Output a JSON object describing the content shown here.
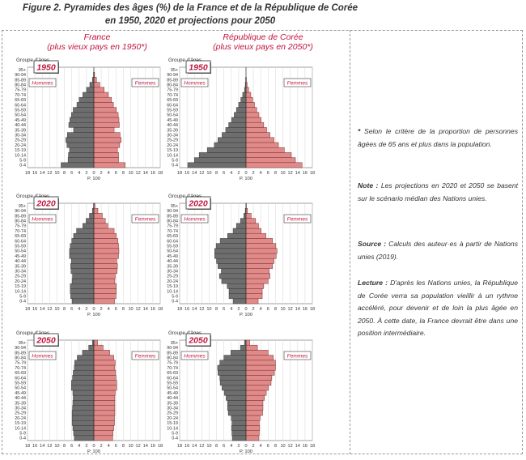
{
  "figure": {
    "title_line1": "Figure 2. Pyramides des âges (%) de la France et de la République de Corée",
    "title_line2": "en 1950, 2020 et projections pour 2050"
  },
  "columns": [
    {
      "name": "France",
      "subtitle": "(plus vieux pays en 1950*)"
    },
    {
      "name": "République de Corée",
      "subtitle": "(plus vieux pays en 2050*)"
    }
  ],
  "panel_labels": {
    "age_group_header": "Groupe d'âges",
    "men": "Hommes",
    "women": "Femmes",
    "x_unit": "P. 100"
  },
  "x_ticks": [
    "18",
    "16",
    "14",
    "12",
    "10",
    "8",
    "6",
    "4",
    "2",
    "0",
    "2",
    "4",
    "6",
    "8",
    "10",
    "12",
    "14",
    "16",
    "18"
  ],
  "colors": {
    "men": "#6e6e6e",
    "women": "#e08a8a",
    "accent": "#c0143c"
  },
  "chart_data": [
    {
      "type": "bar",
      "country": "France",
      "year": "1950",
      "categories": [
        "0-4",
        "5-9",
        "10-14",
        "15-19",
        "20-24",
        "25-29",
        "30-34",
        "35-39",
        "40-44",
        "45-49",
        "50-54",
        "55-59",
        "60-64",
        "65-69",
        "70-74",
        "75-79",
        "80-84",
        "85-89",
        "90-94",
        "95+"
      ],
      "series": [
        {
          "name": "Hommes",
          "values": [
            8.9,
            7.0,
            6.9,
            6.6,
            7.3,
            7.6,
            7.2,
            5.5,
            6.8,
            6.5,
            6.1,
            5.6,
            4.6,
            4.0,
            3.0,
            2.0,
            1.1,
            0.4,
            0.1,
            0.0
          ]
        },
        {
          "name": "Femmes",
          "values": [
            8.5,
            6.7,
            6.7,
            6.4,
            7.0,
            7.4,
            7.1,
            5.5,
            6.9,
            6.8,
            6.6,
            6.1,
            5.3,
            4.8,
            3.9,
            2.8,
            1.6,
            0.7,
            0.2,
            0.0
          ]
        }
      ],
      "xlim": [
        -18,
        18
      ]
    },
    {
      "type": "bar",
      "country": "République de Corée",
      "year": "1950",
      "categories": [
        "0-4",
        "5-9",
        "10-14",
        "15-19",
        "20-24",
        "25-29",
        "30-34",
        "35-39",
        "40-44",
        "45-49",
        "50-54",
        "55-59",
        "60-64",
        "65-69",
        "70-74",
        "75-79",
        "80-84",
        "85-89",
        "90-94",
        "95+"
      ],
      "series": [
        {
          "name": "Hommes",
          "values": [
            15.8,
            14.0,
            12.7,
            10.5,
            8.6,
            7.6,
            6.5,
            5.5,
            4.7,
            3.9,
            3.2,
            2.6,
            2.0,
            1.4,
            0.9,
            0.4,
            0.2,
            0.1,
            0.0,
            0.0
          ]
        },
        {
          "name": "Femmes",
          "values": [
            15.2,
            13.4,
            12.3,
            10.4,
            8.8,
            7.6,
            6.5,
            5.6,
            4.8,
            4.1,
            3.5,
            2.9,
            2.3,
            1.8,
            1.3,
            0.7,
            0.3,
            0.1,
            0.0,
            0.0
          ]
        }
      ],
      "xlim": [
        -18,
        18
      ]
    },
    {
      "type": "bar",
      "country": "France",
      "year": "2020",
      "categories": [
        "0-4",
        "5-9",
        "10-14",
        "15-19",
        "20-24",
        "25-29",
        "30-34",
        "35-39",
        "40-44",
        "45-49",
        "50-54",
        "55-59",
        "60-64",
        "65-69",
        "70-74",
        "75-79",
        "80-84",
        "85-89",
        "90-94",
        "95+"
      ],
      "series": [
        {
          "name": "Hommes",
          "values": [
            5.9,
            6.3,
            6.4,
            6.4,
            5.9,
            5.8,
            6.2,
            6.3,
            6.1,
            6.6,
            6.6,
            6.4,
            6.0,
            5.5,
            4.7,
            3.0,
            2.1,
            1.2,
            0.4,
            0.1
          ]
        },
        {
          "name": "Femmes",
          "values": [
            5.6,
            6.0,
            6.1,
            6.1,
            5.7,
            5.8,
            6.3,
            6.4,
            6.2,
            6.7,
            6.8,
            6.7,
            6.5,
            6.1,
            5.5,
            3.8,
            3.1,
            2.3,
            1.1,
            0.3
          ]
        }
      ],
      "xlim": [
        -18,
        18
      ]
    },
    {
      "type": "bar",
      "country": "République de Corée",
      "year": "2020",
      "categories": [
        "0-4",
        "5-9",
        "10-14",
        "15-19",
        "20-24",
        "25-29",
        "30-34",
        "35-39",
        "40-44",
        "45-49",
        "50-54",
        "55-59",
        "60-64",
        "65-69",
        "70-74",
        "75-79",
        "80-84",
        "85-89",
        "90-94",
        "95+"
      ],
      "series": [
        {
          "name": "Hommes",
          "values": [
            3.5,
            4.6,
            4.6,
            5.1,
            6.6,
            7.2,
            6.7,
            7.6,
            8.0,
            8.5,
            8.5,
            8.1,
            7.0,
            5.0,
            3.5,
            2.6,
            1.5,
            0.6,
            0.2,
            0.0
          ]
        },
        {
          "name": "Femmes",
          "values": [
            3.3,
            4.4,
            4.4,
            4.8,
            6.0,
            6.5,
            6.3,
            7.2,
            7.6,
            8.2,
            8.4,
            8.1,
            7.2,
            5.4,
            4.1,
            3.4,
            2.6,
            1.4,
            0.4,
            0.1
          ]
        }
      ],
      "xlim": [
        -18,
        18
      ]
    },
    {
      "type": "bar",
      "country": "France",
      "year": "2050",
      "categories": [
        "0-4",
        "5-9",
        "10-14",
        "15-19",
        "20-24",
        "25-29",
        "30-34",
        "35-39",
        "40-44",
        "45-49",
        "50-54",
        "55-59",
        "60-64",
        "65-69",
        "70-74",
        "75-79",
        "80-84",
        "85-89",
        "90-94",
        "95+"
      ],
      "series": [
        {
          "name": "Hommes",
          "values": [
            5.3,
            5.5,
            5.7,
            5.9,
            5.9,
            5.9,
            5.8,
            5.7,
            5.6,
            5.7,
            6.1,
            6.1,
            5.8,
            5.6,
            5.3,
            5.2,
            4.5,
            3.1,
            1.4,
            0.4
          ]
        },
        {
          "name": "Femmes",
          "values": [
            5.1,
            5.2,
            5.4,
            5.6,
            5.6,
            5.7,
            5.7,
            5.7,
            5.7,
            5.8,
            6.2,
            6.2,
            6.0,
            5.9,
            5.7,
            5.8,
            5.4,
            4.3,
            2.5,
            1.0
          ]
        }
      ],
      "xlim": [
        -18,
        18
      ]
    },
    {
      "type": "bar",
      "country": "République de Corée",
      "year": "2050",
      "categories": [
        "0-4",
        "5-9",
        "10-14",
        "15-19",
        "20-24",
        "25-29",
        "30-34",
        "35-39",
        "40-44",
        "45-49",
        "50-54",
        "55-59",
        "60-64",
        "65-69",
        "70-74",
        "75-79",
        "80-84",
        "85-89",
        "90-94",
        "95+"
      ],
      "series": [
        {
          "name": "Hommes",
          "values": [
            3.7,
            3.8,
            3.9,
            3.8,
            4.0,
            4.8,
            5.0,
            5.0,
            5.4,
            5.9,
            6.5,
            7.0,
            7.1,
            7.6,
            7.7,
            7.1,
            6.0,
            4.1,
            1.5,
            0.4
          ]
        },
        {
          "name": "Femmes",
          "values": [
            3.5,
            3.6,
            3.7,
            3.6,
            3.8,
            4.5,
            4.6,
            4.6,
            5.0,
            5.5,
            6.1,
            6.8,
            7.0,
            7.7,
            8.0,
            8.0,
            7.4,
            6.0,
            3.1,
            1.0
          ]
        }
      ],
      "xlim": [
        -18,
        18
      ]
    }
  ],
  "notes": {
    "star_sym": "*",
    "star_text": "Selon le critère de la proportion de personnes âgées de 65 ans et plus dans la population.",
    "note_label": "Note :",
    "note_text": "Les projections en 2020 et 2050 se basent sur le scénario médian des Nations unies.",
    "source_label": "Source :",
    "source_text": "Calculs des auteur·es à partir de Nations unies (2019).",
    "lecture_label": "Lecture :",
    "lecture_text": "D'après les Nations unies, la République de Corée verra sa population vieillir à un rythme accéléré, pour devenir et de loin la plus âgée en 2050. À cette date, la France devrait être dans une position intermédiaire."
  }
}
